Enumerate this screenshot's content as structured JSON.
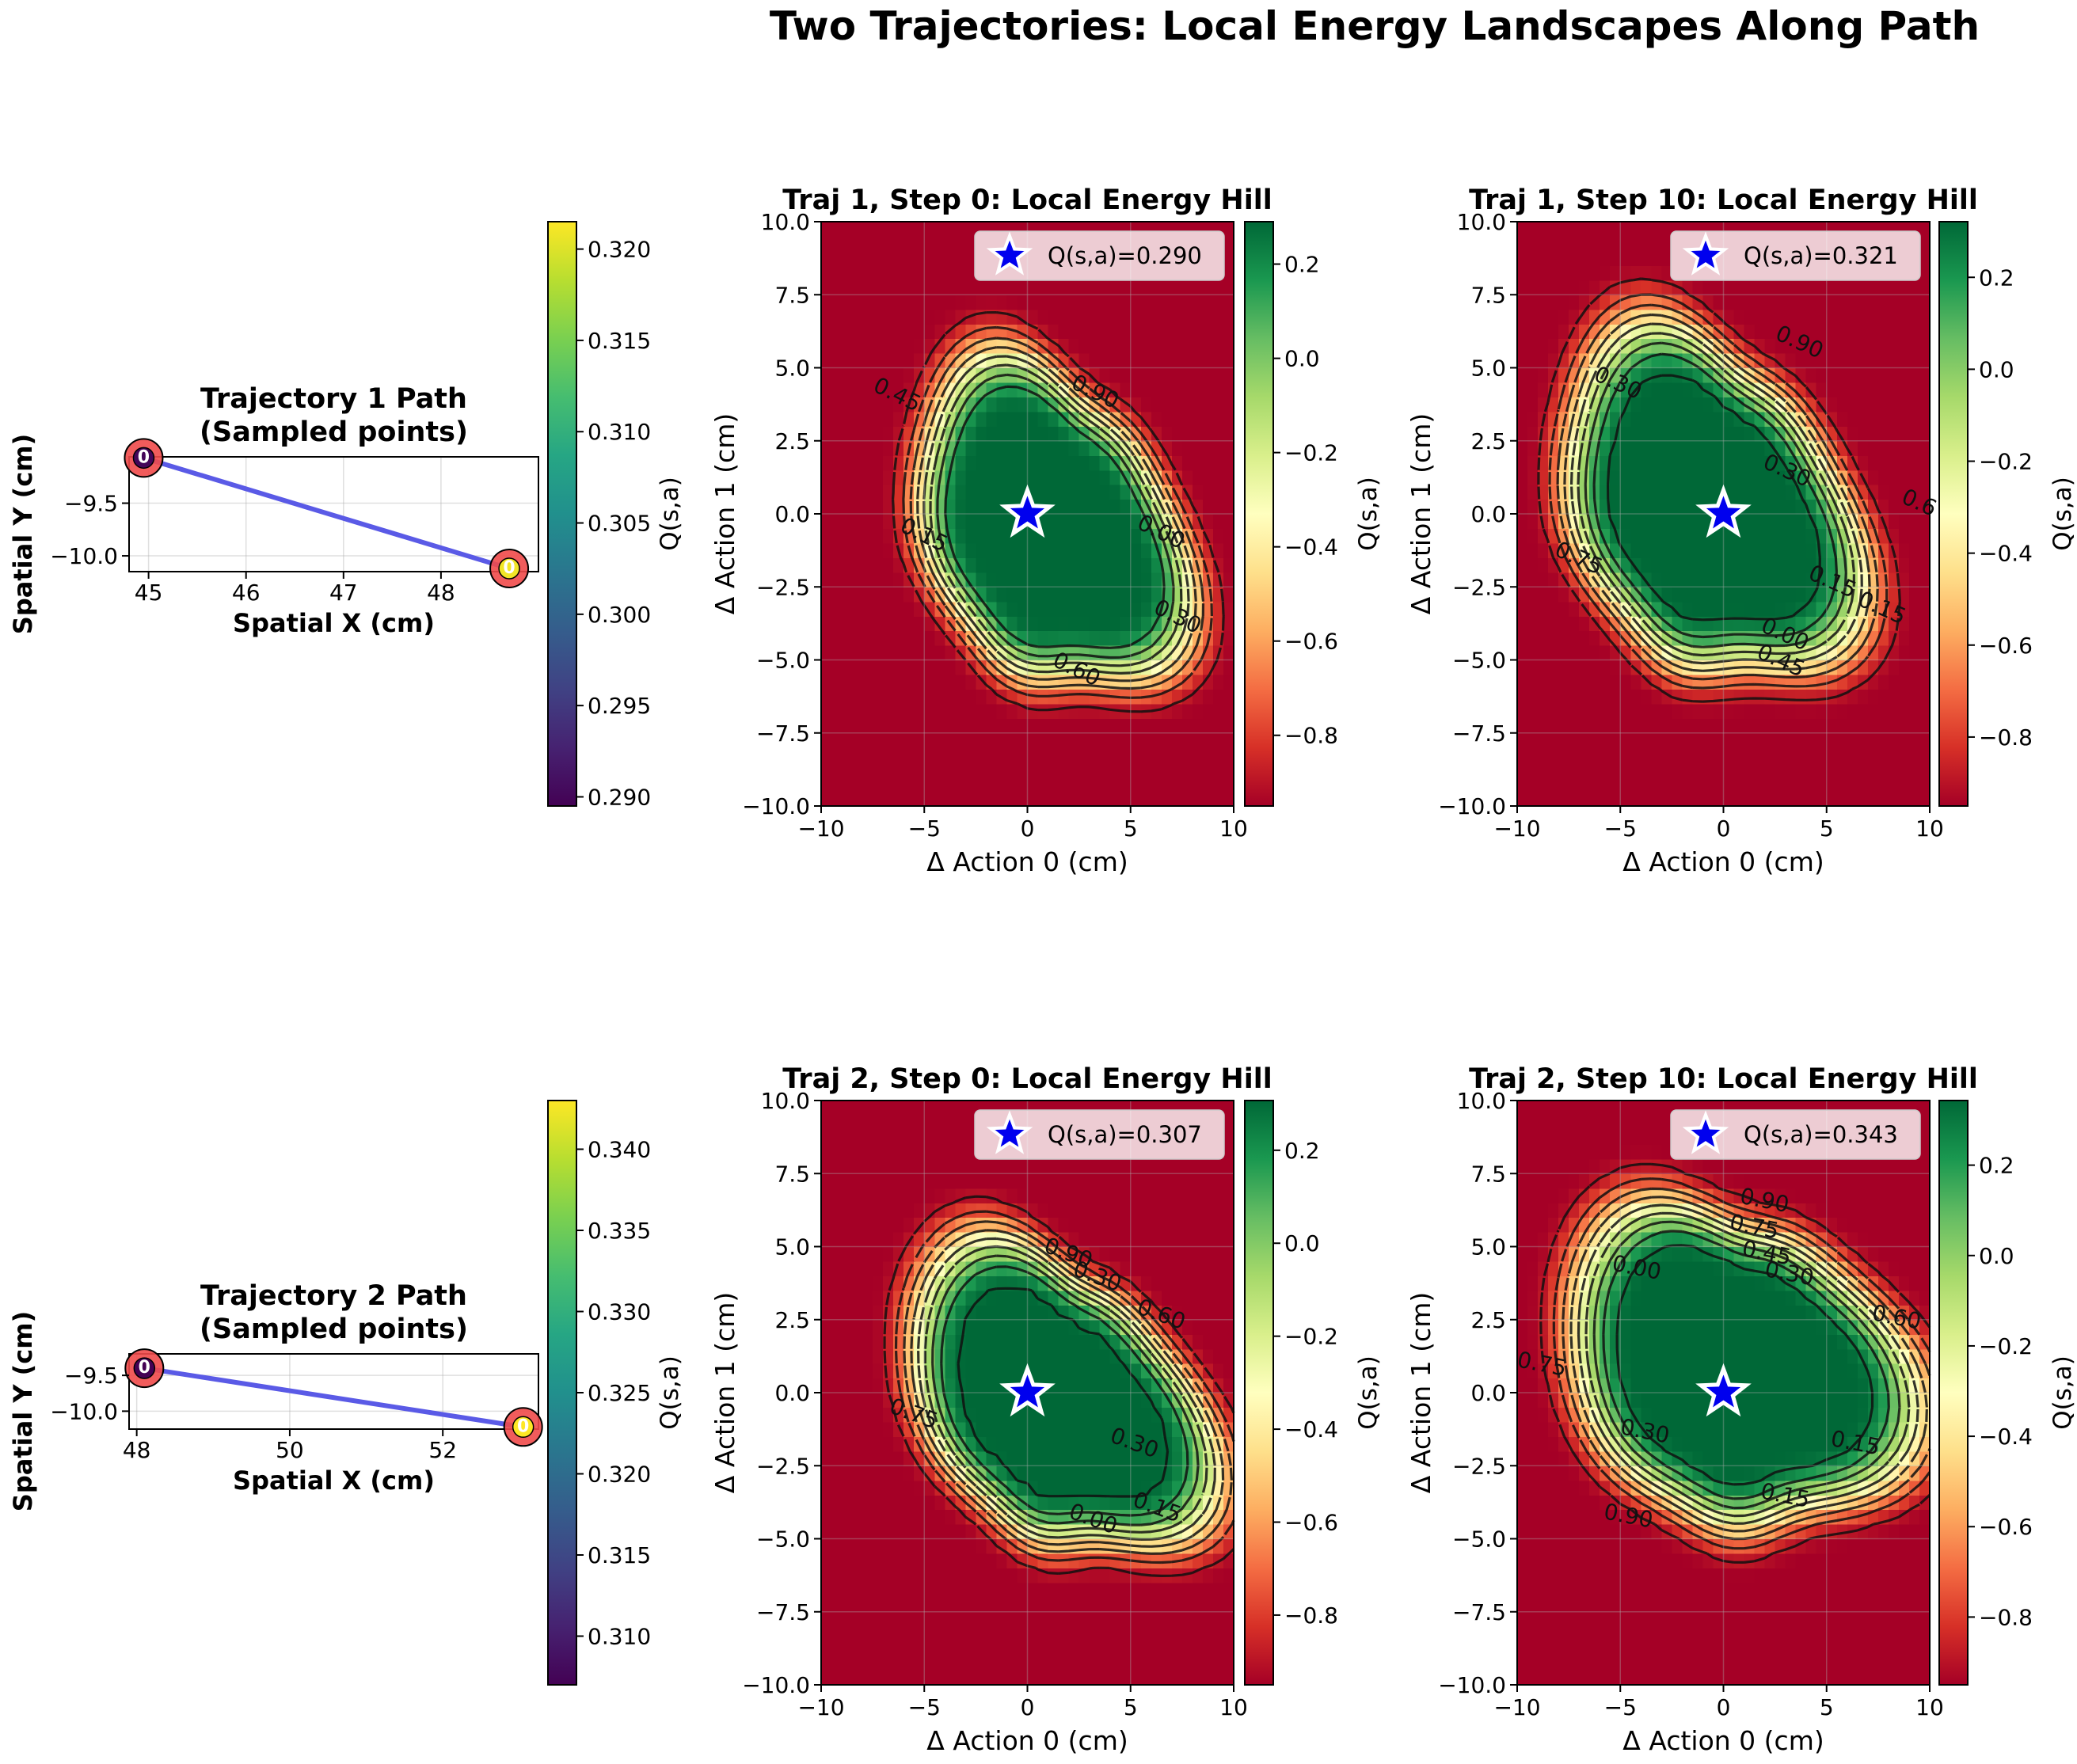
{
  "figure": {
    "title": "Two Trajectories: Local Energy Landscapes Along Path"
  },
  "colors": {
    "path_line": "#5a5ae6",
    "marker_ring": "#f04a4a",
    "star": "#0000ee",
    "contour": "#111111"
  },
  "chart_data": [
    {
      "id": "traj1_path",
      "type": "scatter",
      "title": "Trajectory 1 Path\n(Sampled points)",
      "xlabel": "Spatial X (cm)",
      "ylabel": "Spatial Y (cm)",
      "xlim": [
        44.8,
        49.0
      ],
      "ylim": [
        -10.15,
        -9.06
      ],
      "xticks": [
        45,
        46,
        47,
        48
      ],
      "yticks": [
        -9.5,
        -10.0
      ],
      "points": [
        {
          "x": 44.95,
          "y": -9.07,
          "q": 0.29,
          "label": "0"
        },
        {
          "x": 48.7,
          "y": -10.12,
          "q": 0.321,
          "label": "0"
        }
      ],
      "colorbar": {
        "label": "Q(s,a)",
        "min": 0.2895,
        "max": 0.3215,
        "colormap": "viridis",
        "ticks": [
          0.29,
          0.295,
          0.3,
          0.305,
          0.31,
          0.315,
          0.32
        ]
      }
    },
    {
      "id": "traj1_step0",
      "type": "heatmap",
      "title": "Traj 1, Step 0: Local Energy Hill",
      "xlabel": "Δ Action 0 (cm)",
      "ylabel": "Δ Action 1 (cm)",
      "xlim": [
        -10,
        10
      ],
      "ylim": [
        -10,
        10
      ],
      "xticks": [
        -10,
        -5,
        0,
        5,
        10
      ],
      "yticks": [
        -10.0,
        -7.5,
        -5.0,
        -2.5,
        0.0,
        2.5,
        5.0,
        7.5,
        10.0
      ],
      "grid": true,
      "colormap": "RdYlGn",
      "vmin": -0.95,
      "vmax": 0.29,
      "blob": {
        "cx": 1.0,
        "cy": -0.5,
        "rx": 8.3,
        "ry": 5.6,
        "angle_deg": -32
      },
      "center_q": 0.29,
      "legend": {
        "label": "Q(s,a)=0.290",
        "position": "upper right"
      },
      "contour_labels": [
        {
          "text": "0.90",
          "x": 3.3,
          "y": 4.2
        },
        {
          "text": "0.45",
          "x": -6.3,
          "y": 4.1
        },
        {
          "text": "0.15",
          "x": -5.0,
          "y": -0.7
        },
        {
          "text": "0.00",
          "x": 6.5,
          "y": -0.6
        },
        {
          "text": "0.30",
          "x": 7.3,
          "y": -3.5
        },
        {
          "text": "0.60",
          "x": 2.4,
          "y": -5.3
        }
      ],
      "colorbar": {
        "label": "Q(s,a)",
        "ticks": [
          0.2,
          0.0,
          -0.2,
          -0.4,
          -0.6,
          -0.8
        ]
      }
    },
    {
      "id": "traj1_step10",
      "type": "heatmap",
      "title": "Traj 1, Step 10: Local Energy Hill",
      "xlabel": "Δ Action 0 (cm)",
      "ylabel": "Δ Action 1 (cm)",
      "xlim": [
        -10,
        10
      ],
      "ylim": [
        -10,
        10
      ],
      "xticks": [
        -10,
        -5,
        0,
        5,
        10
      ],
      "yticks": [
        -10.0,
        -7.5,
        -5.0,
        -2.5,
        0.0,
        2.5,
        5.0,
        7.5,
        10.0
      ],
      "grid": true,
      "colormap": "RdYlGn",
      "vmin": -0.95,
      "vmax": 0.321,
      "blob": {
        "cx": -0.8,
        "cy": 0.2,
        "rx": 9.0,
        "ry": 6.0,
        "angle_deg": -30
      },
      "center_q": 0.321,
      "legend": {
        "label": "Q(s,a)=0.321",
        "position": "upper right"
      },
      "contour_labels": [
        {
          "text": "0.90",
          "x": 3.7,
          "y": 5.9
        },
        {
          "text": "0.30",
          "x": -5.1,
          "y": 4.5
        },
        {
          "text": "0.30",
          "x": 3.1,
          "y": 1.5
        },
        {
          "text": "0.75",
          "x": -7.0,
          "y": -1.5
        },
        {
          "text": "0.15",
          "x": 5.3,
          "y": -2.3
        },
        {
          "text": "0.15",
          "x": 7.7,
          "y": -3.2
        },
        {
          "text": "0.00",
          "x": 3.0,
          "y": -4.1
        },
        {
          "text": "0.45",
          "x": 2.8,
          "y": -5.0
        },
        {
          "text": "0.6",
          "x": 9.5,
          "y": 0.4
        }
      ],
      "colorbar": {
        "label": "Q(s,a)",
        "ticks": [
          0.2,
          0.0,
          -0.2,
          -0.4,
          -0.6,
          -0.8
        ]
      }
    },
    {
      "id": "traj2_path",
      "type": "scatter",
      "title": "Trajectory 2 Path\n(Sampled points)",
      "xlabel": "Spatial X (cm)",
      "ylabel": "Spatial Y (cm)",
      "xlim": [
        47.9,
        53.25
      ],
      "ylim": [
        -10.25,
        -9.2
      ],
      "xticks": [
        48,
        50,
        52
      ],
      "yticks": [
        -9.5,
        -10.0
      ],
      "points": [
        {
          "x": 48.1,
          "y": -9.4,
          "q": 0.307,
          "label": "0"
        },
        {
          "x": 53.05,
          "y": -10.22,
          "q": 0.343,
          "label": "0"
        }
      ],
      "colorbar": {
        "label": "Q(s,a)",
        "min": 0.307,
        "max": 0.343,
        "colormap": "viridis",
        "ticks": [
          0.31,
          0.315,
          0.32,
          0.325,
          0.33,
          0.335,
          0.34
        ]
      }
    },
    {
      "id": "traj2_step0",
      "type": "heatmap",
      "title": "Traj 2, Step 0: Local Energy Hill",
      "xlabel": "Δ Action 0 (cm)",
      "ylabel": "Δ Action 1 (cm)",
      "xlim": [
        -10,
        10
      ],
      "ylim": [
        -10,
        10
      ],
      "xticks": [
        -10,
        -5,
        0,
        5,
        10
      ],
      "yticks": [
        -10.0,
        -7.5,
        -5.0,
        -2.5,
        0.0,
        2.5,
        5.0,
        7.5,
        10.0
      ],
      "grid": true,
      "colormap": "RdYlGn",
      "vmin": -0.95,
      "vmax": 0.307,
      "blob": {
        "cx": 1.3,
        "cy": -0.3,
        "rx": 9.2,
        "ry": 5.2,
        "angle_deg": -25
      },
      "center_q": 0.307,
      "legend": {
        "label": "Q(s,a)=0.307",
        "position": "upper right"
      },
      "contour_labels": [
        {
          "text": "0.90",
          "x": 2.0,
          "y": 4.8
        },
        {
          "text": "0.30",
          "x": 3.4,
          "y": 4.0
        },
        {
          "text": "0.60",
          "x": 6.5,
          "y": 2.7
        },
        {
          "text": "0.75",
          "x": -5.5,
          "y": -0.7
        },
        {
          "text": "0.30",
          "x": 5.2,
          "y": -1.7
        },
        {
          "text": "0.00",
          "x": 3.2,
          "y": -4.3
        },
        {
          "text": "0.15",
          "x": 6.3,
          "y": -3.9
        }
      ],
      "colorbar": {
        "label": "Q(s,a)",
        "ticks": [
          0.2,
          0.0,
          -0.2,
          -0.4,
          -0.6,
          -0.8
        ]
      }
    },
    {
      "id": "traj2_step10",
      "type": "heatmap",
      "title": "Traj 2, Step 10: Local Energy Hill",
      "xlabel": "Δ Action 0 (cm)",
      "ylabel": "Δ Action 1 (cm)",
      "xlim": [
        -10,
        10
      ],
      "ylim": [
        -10,
        10
      ],
      "xticks": [
        -10,
        -5,
        0,
        5,
        10
      ],
      "yticks": [
        -10.0,
        -7.5,
        -5.0,
        -2.5,
        0.0,
        2.5,
        5.0,
        7.5,
        10.0
      ],
      "grid": true,
      "colormap": "RdYlGn",
      "vmin": -0.95,
      "vmax": 0.343,
      "blob": {
        "cx": 0.5,
        "cy": 0.8,
        "rx": 10.0,
        "ry": 5.9,
        "angle_deg": -14
      },
      "center_q": 0.343,
      "legend": {
        "label": "Q(s,a)=0.343",
        "position": "upper right"
      },
      "contour_labels": [
        {
          "text": "0.90",
          "x": 2.0,
          "y": 6.6
        },
        {
          "text": "0.75",
          "x": 1.5,
          "y": 5.7
        },
        {
          "text": "0.45",
          "x": 2.1,
          "y": 4.8
        },
        {
          "text": "0.30",
          "x": 3.2,
          "y": 4.1
        },
        {
          "text": "0.00",
          "x": -4.2,
          "y": 4.3
        },
        {
          "text": "0.60",
          "x": 8.4,
          "y": 2.6
        },
        {
          "text": "0.75",
          "x": -8.8,
          "y": 1.0
        },
        {
          "text": "0.30",
          "x": -3.8,
          "y": -1.3
        },
        {
          "text": "0.15",
          "x": 6.4,
          "y": -1.7
        },
        {
          "text": "0.15",
          "x": 3.0,
          "y": -3.5
        },
        {
          "text": "0.90",
          "x": -4.6,
          "y": -4.2
        }
      ],
      "colorbar": {
        "label": "Q(s,a)",
        "ticks": [
          0.2,
          0.0,
          -0.2,
          -0.4,
          -0.6,
          -0.8
        ]
      }
    }
  ]
}
